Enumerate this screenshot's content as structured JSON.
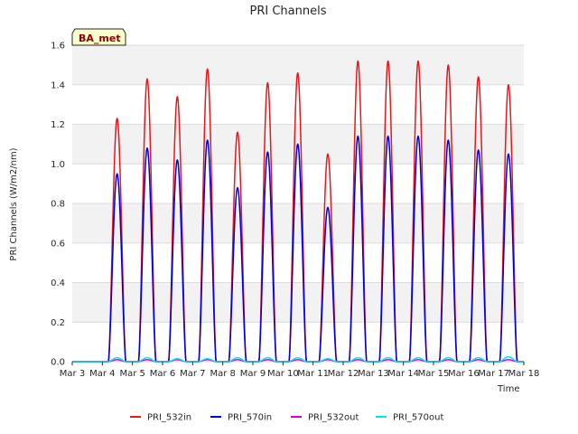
{
  "chart_data": {
    "type": "line",
    "title": "PRI Channels",
    "xlabel": "Time",
    "ylabel": "PRI Channels (W/m2/nm)",
    "badge": "BA_met",
    "ylim": [
      0.0,
      1.6
    ],
    "xlim": [
      0,
      15
    ],
    "yticks": [
      "0.0",
      "0.2",
      "0.4",
      "0.6",
      "0.8",
      "1.0",
      "1.2",
      "1.4",
      "1.6"
    ],
    "xtick_labels": [
      "Mar 3",
      "Mar 4",
      "Mar 5",
      "Mar 6",
      "Mar 7",
      "Mar 8",
      "Mar 9",
      "Mar 10",
      "Mar 11",
      "Mar 12",
      "Mar 13",
      "Mar 14",
      "Mar 15",
      "Mar 16",
      "Mar 17",
      "Mar 18"
    ],
    "day_start_offset": 0.2,
    "day_end_offset": 0.78,
    "series": [
      {
        "name": "PRI_532in",
        "color": "#e31a1c",
        "daily_peaks": [
          1.23,
          1.43,
          1.34,
          1.48,
          1.16,
          1.41,
          1.46,
          1.05,
          1.52,
          1.52,
          1.52,
          1.5,
          1.44,
          1.4
        ]
      },
      {
        "name": "PRI_570in",
        "color": "#0000dd",
        "daily_peaks": [
          0.95,
          1.08,
          1.02,
          1.12,
          0.88,
          1.06,
          1.1,
          0.78,
          1.14,
          1.14,
          1.14,
          1.12,
          1.07,
          1.05
        ]
      },
      {
        "name": "PRI_532out",
        "color": "#dd00dd",
        "daily_peaks": [
          0.01,
          0.01,
          0.01,
          0.01,
          0.01,
          0.01,
          0.01,
          0.01,
          0.01,
          0.01,
          0.01,
          0.01,
          0.01,
          0.01
        ]
      },
      {
        "name": "PRI_570out",
        "color": "#00e5ee",
        "daily_peaks": [
          0.02,
          0.02,
          0.015,
          0.015,
          0.02,
          0.02,
          0.02,
          0.015,
          0.02,
          0.02,
          0.02,
          0.02,
          0.02,
          0.025
        ]
      }
    ]
  }
}
